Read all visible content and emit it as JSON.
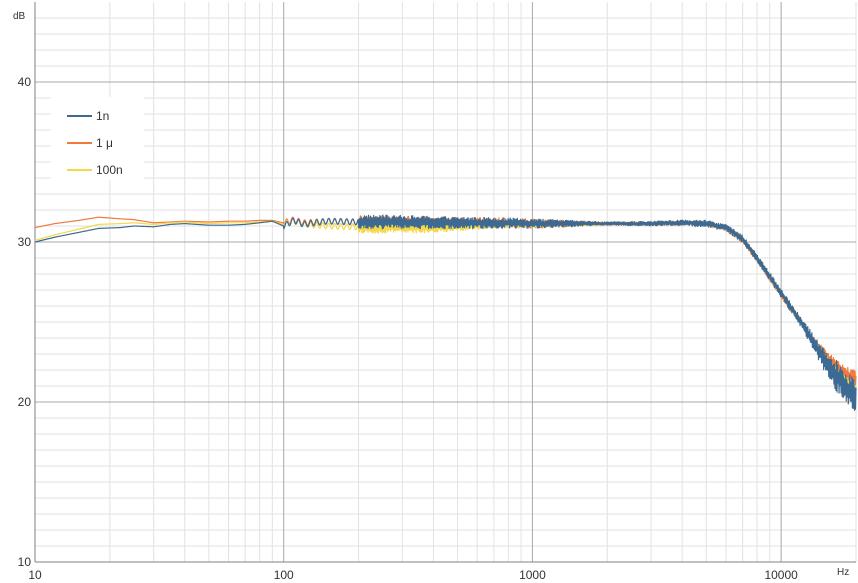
{
  "chart_data": {
    "type": "line",
    "x_scale": "log",
    "xlim": [
      10,
      20000
    ],
    "ylim": [
      10,
      45
    ],
    "x_ticks": [
      "10",
      "100",
      "1000",
      "10000"
    ],
    "y_ticks": [
      "10",
      "20",
      "30",
      "40"
    ],
    "x_unit": "Hz",
    "y_unit": "dB",
    "grid": true,
    "legend_position": "top-left",
    "series": [
      {
        "name": "1n",
        "color": "#3d6a93",
        "points": [
          [
            10,
            30.0
          ],
          [
            12,
            30.3
          ],
          [
            15,
            30.6
          ],
          [
            18,
            30.85
          ],
          [
            22,
            30.9
          ],
          [
            25,
            31.0
          ],
          [
            30,
            30.95
          ],
          [
            35,
            31.1
          ],
          [
            40,
            31.15
          ],
          [
            50,
            31.05
          ],
          [
            60,
            31.05
          ],
          [
            70,
            31.1
          ],
          [
            80,
            31.2
          ],
          [
            90,
            31.3
          ],
          [
            100,
            31.0
          ],
          [
            110,
            31.35
          ],
          [
            120,
            31.1
          ],
          [
            150,
            31.3
          ],
          [
            200,
            31.25
          ],
          [
            300,
            31.25
          ],
          [
            500,
            31.2
          ],
          [
            700,
            31.2
          ],
          [
            1000,
            31.15
          ],
          [
            2000,
            31.15
          ],
          [
            3000,
            31.15
          ],
          [
            4000,
            31.2
          ],
          [
            5000,
            31.15
          ],
          [
            6000,
            30.9
          ],
          [
            7000,
            30.2
          ],
          [
            8000,
            29.0
          ],
          [
            10000,
            26.8
          ],
          [
            12000,
            25.0
          ],
          [
            14000,
            23.3
          ],
          [
            16000,
            22.0
          ],
          [
            18000,
            21.0
          ],
          [
            20000,
            20.3
          ]
        ],
        "spread_db": [
          [
            200,
            0.45
          ],
          [
            1000,
            0.3
          ],
          [
            2000,
            0.1
          ],
          [
            12000,
            0.3
          ],
          [
            14000,
            0.6
          ],
          [
            16000,
            0.9
          ],
          [
            18000,
            1.1
          ],
          [
            20000,
            1.1
          ]
        ]
      },
      {
        "name": "1 μ",
        "color": "#f07a3c",
        "points": [
          [
            10,
            30.9
          ],
          [
            12,
            31.15
          ],
          [
            15,
            31.35
          ],
          [
            18,
            31.55
          ],
          [
            22,
            31.45
          ],
          [
            25,
            31.4
          ],
          [
            30,
            31.2
          ],
          [
            35,
            31.25
          ],
          [
            40,
            31.3
          ],
          [
            50,
            31.25
          ],
          [
            60,
            31.3
          ],
          [
            70,
            31.3
          ],
          [
            80,
            31.35
          ],
          [
            90,
            31.35
          ],
          [
            100,
            31.2
          ],
          [
            110,
            31.4
          ],
          [
            120,
            31.2
          ],
          [
            150,
            31.3
          ],
          [
            200,
            31.25
          ],
          [
            300,
            31.25
          ],
          [
            500,
            31.2
          ],
          [
            700,
            31.2
          ],
          [
            1000,
            31.15
          ],
          [
            2000,
            31.15
          ],
          [
            3000,
            31.15
          ],
          [
            4000,
            31.2
          ],
          [
            5000,
            31.15
          ],
          [
            6000,
            30.85
          ],
          [
            7000,
            30.1
          ],
          [
            8000,
            28.9
          ],
          [
            10000,
            26.7
          ],
          [
            12000,
            25.0
          ],
          [
            14000,
            23.5
          ],
          [
            16000,
            22.5
          ],
          [
            18000,
            21.8
          ],
          [
            20000,
            21.5
          ]
        ],
        "spread_db": [
          [
            200,
            0.4
          ],
          [
            1000,
            0.3
          ],
          [
            2000,
            0.1
          ],
          [
            12000,
            0.2
          ],
          [
            14000,
            0.3
          ],
          [
            16000,
            0.4
          ],
          [
            18000,
            0.45
          ],
          [
            20000,
            0.45
          ]
        ]
      },
      {
        "name": "100n",
        "color": "#f5d84a",
        "points": [
          [
            10,
            30.1
          ],
          [
            12,
            30.45
          ],
          [
            15,
            30.8
          ],
          [
            18,
            31.1
          ],
          [
            22,
            31.15
          ],
          [
            25,
            31.2
          ],
          [
            30,
            31.1
          ],
          [
            35,
            31.2
          ],
          [
            40,
            31.25
          ],
          [
            50,
            31.15
          ],
          [
            60,
            31.2
          ],
          [
            70,
            31.2
          ],
          [
            80,
            31.25
          ],
          [
            90,
            31.3
          ],
          [
            100,
            31.1
          ],
          [
            110,
            31.3
          ],
          [
            120,
            31.1
          ],
          [
            150,
            31.0
          ],
          [
            200,
            30.95
          ],
          [
            300,
            30.9
          ],
          [
            400,
            30.9
          ],
          [
            500,
            31.0
          ],
          [
            700,
            31.1
          ],
          [
            1000,
            31.1
          ],
          [
            2000,
            31.15
          ],
          [
            3000,
            31.15
          ],
          [
            4000,
            31.2
          ],
          [
            5000,
            31.15
          ],
          [
            6000,
            30.9
          ],
          [
            7000,
            30.2
          ],
          [
            8000,
            29.0
          ],
          [
            10000,
            26.8
          ],
          [
            12000,
            25.0
          ],
          [
            14000,
            23.4
          ],
          [
            16000,
            22.2
          ],
          [
            18000,
            21.3
          ],
          [
            20000,
            20.8
          ]
        ],
        "spread_db": [
          [
            200,
            0.4
          ],
          [
            500,
            0.3
          ],
          [
            1000,
            0.2
          ],
          [
            2000,
            0.1
          ],
          [
            12000,
            0.2
          ],
          [
            16000,
            0.3
          ],
          [
            20000,
            0.3
          ]
        ]
      }
    ]
  }
}
